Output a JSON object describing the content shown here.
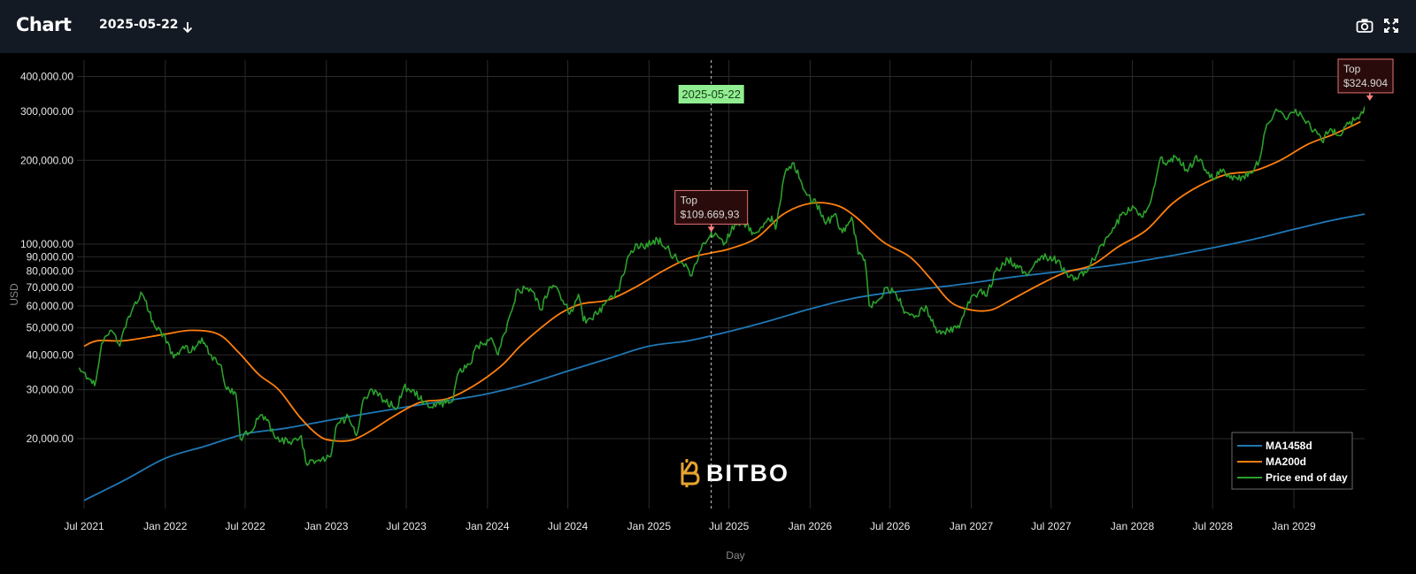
{
  "header": {
    "title": "Chart",
    "date_value": "2025-05-22",
    "icons": [
      "arrow-down-icon",
      "camera-icon",
      "fullscreen-icon"
    ]
  },
  "colors": {
    "background": "#000000",
    "header_bg": "#141a24",
    "grid": "#2a2a2a",
    "ma1458": "#1f77b4",
    "ma200": "#ff7f0e",
    "price": "#2ca02c",
    "top_box_border": "#e57373",
    "top_box_bg": "#2a0b0b",
    "date_badge_bg": "#90ee90"
  },
  "chart_data": {
    "type": "line",
    "title": "",
    "xlabel": "Day",
    "ylabel": "USD",
    "yscale": "log",
    "ylim": [
      11000,
      470000
    ],
    "xlim": [
      "2021-06-20",
      "2029-08-20"
    ],
    "grid": true,
    "y_ticks": [
      {
        "value": 20000,
        "label": "20,000.00"
      },
      {
        "value": 30000,
        "label": "30,000.00"
      },
      {
        "value": 40000,
        "label": "40,000.00"
      },
      {
        "value": 50000,
        "label": "50,000.00"
      },
      {
        "value": 60000,
        "label": "60,000.00"
      },
      {
        "value": 70000,
        "label": "70,000.00"
      },
      {
        "value": 80000,
        "label": "80,000.00"
      },
      {
        "value": 90000,
        "label": "90,000.00"
      },
      {
        "value": 100000,
        "label": "100,000.00"
      },
      {
        "value": 200000,
        "label": "200,000.00"
      },
      {
        "value": 300000,
        "label": "300,000.00"
      },
      {
        "value": 400000,
        "label": "400,000.00"
      }
    ],
    "x_ticks": [
      {
        "date": "2021-07-01",
        "label": "Jul 2021"
      },
      {
        "date": "2022-01-01",
        "label": "Jan 2022"
      },
      {
        "date": "2022-07-01",
        "label": "Jul 2022"
      },
      {
        "date": "2023-01-01",
        "label": "Jan 2023"
      },
      {
        "date": "2023-07-01",
        "label": "Jul 2023"
      },
      {
        "date": "2024-01-01",
        "label": "Jan 2024"
      },
      {
        "date": "2024-07-01",
        "label": "Jul 2024"
      },
      {
        "date": "2025-01-01",
        "label": "Jan 2025"
      },
      {
        "date": "2025-07-01",
        "label": "Jul 2025"
      },
      {
        "date": "2026-01-01",
        "label": "Jan 2026"
      },
      {
        "date": "2026-07-01",
        "label": "Jul 2026"
      },
      {
        "date": "2027-01-01",
        "label": "Jan 2027"
      },
      {
        "date": "2027-07-01",
        "label": "Jul 2027"
      },
      {
        "date": "2028-01-01",
        "label": "Jan 2028"
      },
      {
        "date": "2028-07-01",
        "label": "Jul 2028"
      },
      {
        "date": "2029-01-01",
        "label": "Jan 2029"
      }
    ],
    "series": [
      {
        "name": "MA1458d",
        "color": "#1f77b4",
        "points": [
          [
            "2021-07-01",
            12000
          ],
          [
            "2021-10-01",
            14200
          ],
          [
            "2022-01-01",
            17000
          ],
          [
            "2022-04-01",
            18800
          ],
          [
            "2022-07-01",
            20800
          ],
          [
            "2022-10-01",
            21800
          ],
          [
            "2023-01-01",
            23200
          ],
          [
            "2023-04-01",
            24600
          ],
          [
            "2023-07-01",
            26000
          ],
          [
            "2023-10-01",
            27400
          ],
          [
            "2024-01-01",
            29000
          ],
          [
            "2024-04-01",
            31500
          ],
          [
            "2024-07-01",
            35000
          ],
          [
            "2024-10-01",
            38800
          ],
          [
            "2025-01-01",
            43000
          ],
          [
            "2025-04-01",
            45000
          ],
          [
            "2025-07-01",
            48500
          ],
          [
            "2025-10-01",
            53000
          ],
          [
            "2026-01-01",
            58500
          ],
          [
            "2026-04-01",
            63500
          ],
          [
            "2026-07-01",
            67000
          ],
          [
            "2026-10-01",
            69500
          ],
          [
            "2027-01-01",
            72500
          ],
          [
            "2027-04-01",
            76000
          ],
          [
            "2027-07-01",
            79000
          ],
          [
            "2027-10-01",
            82000
          ],
          [
            "2028-01-01",
            86000
          ],
          [
            "2028-04-01",
            91000
          ],
          [
            "2028-07-01",
            97000
          ],
          [
            "2028-10-01",
            104000
          ],
          [
            "2029-01-01",
            113000
          ],
          [
            "2029-04-01",
            122000
          ],
          [
            "2029-07-01",
            130000
          ]
        ]
      },
      {
        "name": "MA200d",
        "color": "#ff7f0e",
        "points": [
          [
            "2021-07-01",
            43000
          ],
          [
            "2021-08-01",
            45000
          ],
          [
            "2021-10-01",
            45000
          ],
          [
            "2022-01-01",
            47500
          ],
          [
            "2022-03-01",
            49000
          ],
          [
            "2022-05-01",
            47500
          ],
          [
            "2022-06-15",
            41000
          ],
          [
            "2022-08-01",
            34000
          ],
          [
            "2022-09-15",
            30000
          ],
          [
            "2022-11-01",
            24000
          ],
          [
            "2022-12-15",
            20500
          ],
          [
            "2023-01-15",
            19700
          ],
          [
            "2023-03-01",
            19800
          ],
          [
            "2023-04-15",
            21500
          ],
          [
            "2023-06-01",
            24000
          ],
          [
            "2023-08-01",
            27000
          ],
          [
            "2023-10-01",
            27800
          ],
          [
            "2023-12-01",
            31000
          ],
          [
            "2024-02-01",
            36500
          ],
          [
            "2024-03-15",
            43000
          ],
          [
            "2024-05-01",
            50000
          ],
          [
            "2024-06-15",
            56500
          ],
          [
            "2024-08-01",
            61000
          ],
          [
            "2024-10-01",
            63000
          ],
          [
            "2024-12-01",
            70000
          ],
          [
            "2025-02-01",
            80000
          ],
          [
            "2025-04-01",
            89000
          ],
          [
            "2025-05-22",
            93000
          ],
          [
            "2025-07-01",
            96000
          ],
          [
            "2025-09-01",
            105000
          ],
          [
            "2025-11-01",
            128000
          ],
          [
            "2026-01-01",
            140000
          ],
          [
            "2026-03-01",
            138000
          ],
          [
            "2026-04-15",
            125000
          ],
          [
            "2026-06-15",
            102000
          ],
          [
            "2026-08-15",
            90000
          ],
          [
            "2026-10-01",
            75000
          ],
          [
            "2026-11-15",
            62000
          ],
          [
            "2027-01-01",
            58000
          ],
          [
            "2027-02-15",
            58000
          ],
          [
            "2027-04-01",
            63000
          ],
          [
            "2027-06-01",
            71000
          ],
          [
            "2027-08-01",
            79000
          ],
          [
            "2027-10-01",
            84000
          ],
          [
            "2027-12-01",
            98000
          ],
          [
            "2028-02-01",
            112000
          ],
          [
            "2028-04-01",
            140000
          ],
          [
            "2028-06-01",
            162000
          ],
          [
            "2028-08-01",
            178000
          ],
          [
            "2028-10-01",
            183000
          ],
          [
            "2028-12-01",
            200000
          ],
          [
            "2029-02-01",
            228000
          ],
          [
            "2029-04-01",
            248000
          ],
          [
            "2029-06-01",
            275000
          ]
        ]
      },
      {
        "name": "Price end of day",
        "color": "#2ca02c",
        "points": [
          [
            "2021-06-20",
            36000
          ],
          [
            "2021-07-10",
            33000
          ],
          [
            "2021-07-25",
            31000
          ],
          [
            "2021-08-10",
            44000
          ],
          [
            "2021-09-01",
            49000
          ],
          [
            "2021-09-20",
            43000
          ],
          [
            "2021-10-10",
            55000
          ],
          [
            "2021-10-25",
            62000
          ],
          [
            "2021-11-10",
            66000
          ],
          [
            "2021-11-25",
            57000
          ],
          [
            "2021-12-10",
            50000
          ],
          [
            "2021-12-31",
            47000
          ],
          [
            "2022-01-20",
            39000
          ],
          [
            "2022-02-10",
            43000
          ],
          [
            "2022-03-01",
            41000
          ],
          [
            "2022-03-25",
            46000
          ],
          [
            "2022-04-15",
            40000
          ],
          [
            "2022-05-05",
            37000
          ],
          [
            "2022-05-20",
            30000
          ],
          [
            "2022-06-10",
            29000
          ],
          [
            "2022-06-20",
            20000
          ],
          [
            "2022-07-10",
            21000
          ],
          [
            "2022-07-30",
            23500
          ],
          [
            "2022-08-15",
            24000
          ],
          [
            "2022-09-10",
            20000
          ],
          [
            "2022-10-10",
            19500
          ],
          [
            "2022-11-05",
            20500
          ],
          [
            "2022-11-15",
            16500
          ],
          [
            "2022-12-15",
            16800
          ],
          [
            "2023-01-10",
            17200
          ],
          [
            "2023-01-25",
            22500
          ],
          [
            "2023-02-20",
            24000
          ],
          [
            "2023-03-10",
            20500
          ],
          [
            "2023-03-25",
            27500
          ],
          [
            "2023-04-15",
            30000
          ],
          [
            "2023-05-15",
            27000
          ],
          [
            "2023-06-10",
            25800
          ],
          [
            "2023-06-25",
            30500
          ],
          [
            "2023-07-15",
            30000
          ],
          [
            "2023-08-20",
            26000
          ],
          [
            "2023-09-15",
            26500
          ],
          [
            "2023-10-15",
            27500
          ],
          [
            "2023-10-25",
            34000
          ],
          [
            "2023-11-20",
            37000
          ],
          [
            "2023-12-10",
            43000
          ],
          [
            "2024-01-10",
            46000
          ],
          [
            "2024-01-25",
            40000
          ],
          [
            "2024-02-15",
            52000
          ],
          [
            "2024-03-10",
            69000
          ],
          [
            "2024-04-10",
            68000
          ],
          [
            "2024-05-01",
            58000
          ],
          [
            "2024-05-20",
            70000
          ],
          [
            "2024-06-10",
            68000
          ],
          [
            "2024-07-05",
            56000
          ],
          [
            "2024-07-25",
            66000
          ],
          [
            "2024-08-05",
            53000
          ],
          [
            "2024-09-05",
            56000
          ],
          [
            "2024-10-01",
            63000
          ],
          [
            "2024-10-25",
            68000
          ],
          [
            "2024-11-12",
            88000
          ],
          [
            "2024-12-05",
            100000
          ],
          [
            "2024-12-20",
            97000
          ],
          [
            "2025-01-20",
            104000
          ],
          [
            "2025-02-10",
            97000
          ],
          [
            "2025-03-05",
            88000
          ],
          [
            "2025-03-25",
            85000
          ],
          [
            "2025-04-08",
            77000
          ],
          [
            "2025-04-25",
            94000
          ],
          [
            "2025-05-22",
            109669
          ],
          [
            "2025-06-10",
            105000
          ],
          [
            "2025-06-22",
            101000
          ],
          [
            "2025-07-15",
            119000
          ],
          [
            "2025-08-10",
            118000
          ],
          [
            "2025-08-25",
            110000
          ],
          [
            "2025-09-10",
            114000
          ],
          [
            "2025-10-01",
            122000
          ],
          [
            "2025-10-06",
            126000
          ],
          [
            "2025-10-15",
            113000
          ],
          [
            "2025-11-05",
            180000
          ],
          [
            "2025-11-25",
            196000
          ],
          [
            "2025-12-10",
            170000
          ],
          [
            "2025-12-25",
            150000
          ],
          [
            "2026-01-15",
            140000
          ],
          [
            "2026-02-05",
            118000
          ],
          [
            "2026-02-25",
            128000
          ],
          [
            "2026-03-15",
            110000
          ],
          [
            "2026-04-05",
            125000
          ],
          [
            "2026-04-20",
            92000
          ],
          [
            "2026-05-05",
            88000
          ],
          [
            "2026-05-15",
            60000
          ],
          [
            "2026-06-05",
            63000
          ],
          [
            "2026-06-25",
            70000
          ],
          [
            "2026-07-15",
            66000
          ],
          [
            "2026-08-05",
            57000
          ],
          [
            "2026-09-01",
            55000
          ],
          [
            "2026-09-20",
            60000
          ],
          [
            "2026-10-15",
            48000
          ],
          [
            "2026-11-10",
            49000
          ],
          [
            "2026-12-05",
            50000
          ],
          [
            "2026-12-25",
            62000
          ],
          [
            "2027-01-20",
            68000
          ],
          [
            "2027-02-05",
            65000
          ],
          [
            "2027-02-25",
            80000
          ],
          [
            "2027-03-25",
            88000
          ],
          [
            "2027-04-15",
            84000
          ],
          [
            "2027-05-10",
            78000
          ],
          [
            "2027-05-30",
            86000
          ],
          [
            "2027-06-20",
            90000
          ],
          [
            "2027-07-15",
            87000
          ],
          [
            "2027-08-05",
            79000
          ],
          [
            "2027-08-25",
            76000
          ],
          [
            "2027-09-15",
            80000
          ],
          [
            "2027-10-05",
            88000
          ],
          [
            "2027-10-25",
            100000
          ],
          [
            "2027-11-15",
            110000
          ],
          [
            "2027-12-10",
            130000
          ],
          [
            "2028-01-05",
            135000
          ],
          [
            "2028-01-25",
            125000
          ],
          [
            "2028-02-15",
            150000
          ],
          [
            "2028-03-05",
            205000
          ],
          [
            "2028-03-20",
            195000
          ],
          [
            "2028-04-10",
            205000
          ],
          [
            "2028-05-05",
            182000
          ],
          [
            "2028-05-25",
            208000
          ],
          [
            "2028-06-15",
            185000
          ],
          [
            "2028-07-05",
            172000
          ],
          [
            "2028-07-25",
            186000
          ],
          [
            "2028-08-15",
            170000
          ],
          [
            "2028-09-05",
            175000
          ],
          [
            "2028-09-25",
            180000
          ],
          [
            "2028-10-15",
            200000
          ],
          [
            "2028-11-01",
            270000
          ],
          [
            "2028-11-25",
            302000
          ],
          [
            "2028-12-15",
            280000
          ],
          [
            "2029-01-05",
            305000
          ],
          [
            "2029-01-25",
            278000
          ],
          [
            "2029-02-15",
            255000
          ],
          [
            "2029-03-05",
            235000
          ],
          [
            "2029-03-25",
            260000
          ],
          [
            "2029-04-15",
            245000
          ],
          [
            "2029-05-05",
            270000
          ],
          [
            "2029-05-25",
            285000
          ],
          [
            "2029-06-10",
            310000
          ],
          [
            "2029-06-22",
            324904
          ]
        ]
      }
    ],
    "annotations": [
      {
        "kind": "vline",
        "date": "2025-05-22",
        "label": "2025-05-22"
      },
      {
        "kind": "top",
        "date": "2025-05-22",
        "value": 109669.93,
        "line1": "Top",
        "line2": "$109.669,93"
      },
      {
        "kind": "top",
        "date": "2029-06-22",
        "value": 324904,
        "line1": "Top",
        "line2": "$324.904"
      }
    ],
    "legend": {
      "position": "bottom-right",
      "entries": [
        "MA1458d",
        "MA200d",
        "Price end of day"
      ]
    },
    "watermark": "BITBO"
  }
}
